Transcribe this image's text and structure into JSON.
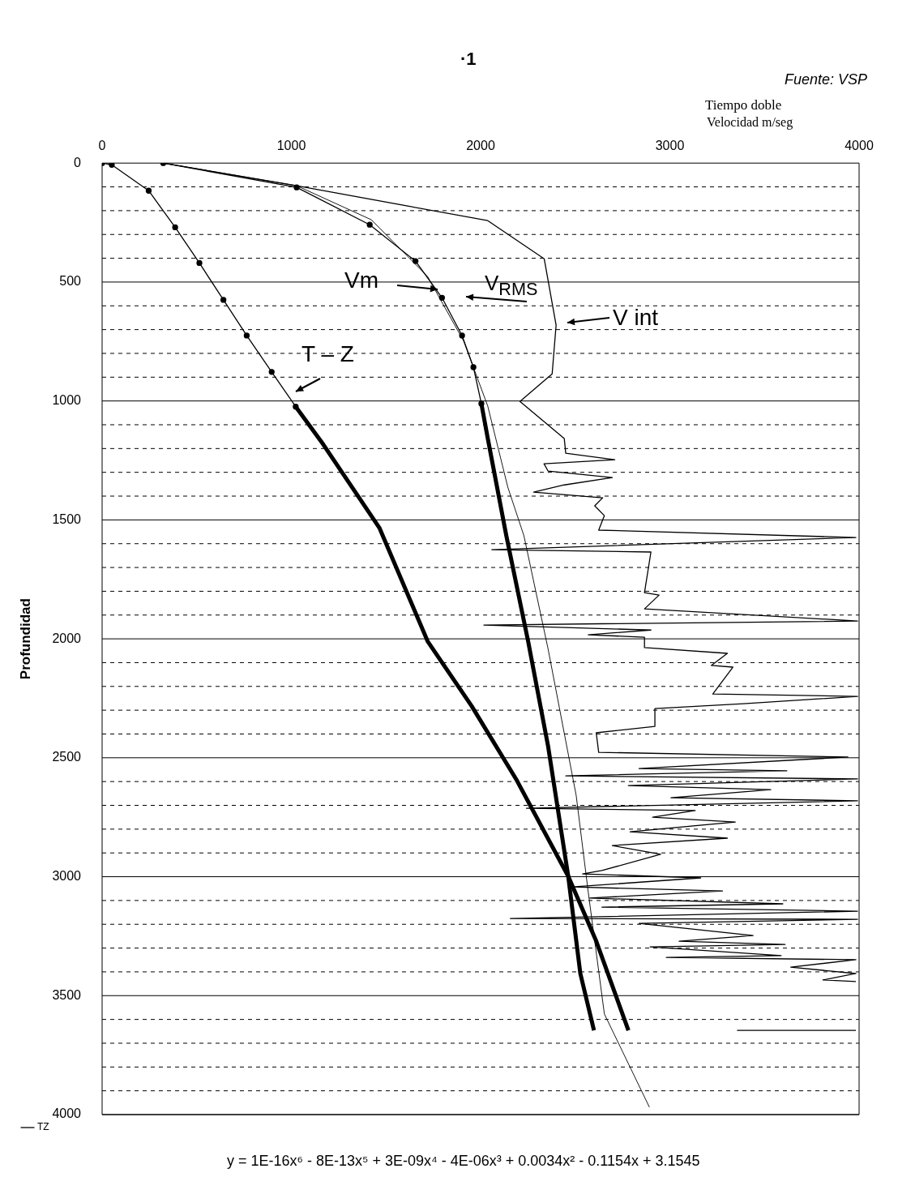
{
  "chart_data": {
    "type": "line",
    "title": "·1",
    "ylabel": "Profundidad",
    "xlabel": "Velocidad m/seg",
    "annotations": [
      "Fuente: VSP",
      "Tiempo doble",
      "y = 1E-16x⁶ - 8E-13x⁵ + 3E-09x⁴ - 4E-06x³ + 0.0034x² - 0.1154x + 3.1545",
      "Vm",
      "V$_{RMS}$",
      "V int",
      "T – Z"
    ],
    "xlim": [
      0,
      4000
    ],
    "xticks": [
      0,
      1000,
      2000,
      3000,
      4000
    ],
    "ylim": [
      4000,
      0
    ],
    "yticks": [
      0,
      {
        "value": 100,
        "label": null
      },
      {
        "value": 200,
        "label": null
      },
      {
        "value": 300,
        "label": null
      },
      {
        "value": 400,
        "label": null
      },
      500,
      {
        "value": 600,
        "label": null
      },
      {
        "value": 700,
        "label": null
      },
      {
        "value": 800,
        "label": null
      },
      {
        "value": 900,
        "label": null
      },
      1000,
      {
        "value": 1100,
        "label": null
      },
      {
        "value": 1200,
        "label": null
      },
      {
        "value": 1300,
        "label": null
      },
      {
        "value": 1400,
        "label": null
      },
      1500,
      {
        "value": 1600,
        "label": null
      },
      {
        "value": 1700,
        "label": null
      },
      {
        "value": 1800,
        "label": null
      },
      {
        "value": 1900,
        "label": null
      },
      2000,
      {
        "value": 2100,
        "label": null
      },
      {
        "value": 2200,
        "label": null
      },
      {
        "value": 2300,
        "label": null
      },
      {
        "value": 2400,
        "label": null
      },
      2500,
      {
        "value": 2600,
        "label": null
      },
      {
        "value": 2700,
        "label": null
      },
      {
        "value": 2800,
        "label": null
      },
      {
        "value": 2900,
        "label": null
      },
      3000,
      {
        "value": 3100,
        "label": null
      },
      {
        "value": 3200,
        "label": null
      },
      {
        "value": 3300,
        "label": null
      },
      {
        "value": 3400,
        "label": null
      },
      3500,
      {
        "value": 3600,
        "label": null
      },
      {
        "value": 3700,
        "label": null
      },
      {
        "value": 3800,
        "label": null
      },
      {
        "value": 3900,
        "label": null
      },
      4000
    ],
    "grid": "y",
    "legend": "bottom left",
    "series": [
      {
        "name": "TZ",
        "color": "#000000",
        "marker": "circle",
        "x": [
          0,
          51,
          246,
          386,
          514,
          641,
          764,
          896,
          1023
        ],
        "values": [
          0,
          7,
          116,
          270,
          420,
          575,
          725,
          878,
          1024
        ]
      },
      {
        "color": "#000000",
        "marker": "none",
        "x": [
          1023,
          1168,
          1465,
          1720,
          1953,
          2187,
          2463,
          2611,
          2781
        ],
        "values": [
          1024,
          1182,
          1533,
          2010,
          2283,
          2589,
          2998,
          3271,
          3646
        ]
      },
      {
        "color": "#000000",
        "marker": "circle",
        "x": [
          323,
          1028,
          1414,
          1656,
          1796,
          1902,
          1962,
          2004
        ],
        "values": [
          0,
          102,
          259,
          412,
          566,
          725,
          858,
          1011
        ]
      },
      {
        "color": "#000000",
        "marker": "none",
        "x": [
          2004,
          2038,
          2136,
          2251,
          2357,
          2463,
          2527,
          2599
        ],
        "values": [
          1011,
          1158,
          1567,
          2010,
          2453,
          2998,
          3407,
          3646
        ]
      },
      {
        "color": "#000000",
        "marker": "none",
        "x": [
          323,
          1028,
          1422,
          1720,
          1911,
          2038,
          2144,
          2229,
          2357,
          2505,
          2569,
          2654,
          2892
        ],
        "values": [
          0,
          95,
          238,
          477,
          749,
          1022,
          1363,
          1567,
          2044,
          2658,
          3066,
          3577,
          3969
        ]
      },
      {
        "color": "#000000",
        "marker": "none",
        "x": [
          323,
          1028,
          2038,
          2336,
          2399,
          2378,
          2208,
          2442,
          2450,
          2709,
          2335,
          2357,
          2696,
          2442,
          2280,
          2645,
          2603,
          2654,
          2624,
          3983,
          2059,
          2900,
          2866,
          2943,
          2866,
          3992,
          2017,
          2900,
          2569,
          2866,
          2866,
          3304,
          3219,
          3333,
          3227,
          3992,
          3389,
          2921,
          2921,
          2611,
          2624,
          3941,
          2837,
          3618,
          2450,
          3992,
          2781,
          3533,
          3006,
          3992,
          2242,
          3134,
          2909,
          3346,
          2790,
          3304,
          2696,
          2951,
          2641,
          2539,
          3163,
          2484,
          3278,
          2577,
          3597,
          2641,
          3992,
          2157,
          3992,
          2837,
          3440,
          3049,
          3609,
          2896,
          3588,
          2981,
          3983,
          3639,
          3983,
          3809,
          3983,
          3700,
          3355,
          3983
        ],
        "values": [
          0,
          95,
          242,
          402,
          681,
          886,
          1002,
          1158,
          1220,
          1247,
          1264,
          1295,
          1322,
          1353,
          1383,
          1407,
          1441,
          1482,
          1543,
          1574,
          1625,
          1635,
          1806,
          1816,
          1874,
          1925,
          1942,
          1963,
          1983,
          1993,
          2037,
          2061,
          2112,
          2119,
          2232,
          2242,
          2273,
          2293,
          2368,
          2395,
          2477,
          2497,
          2545,
          2555,
          2576,
          2589,
          2617,
          2634,
          2668,
          2681,
          2712,
          2722,
          2750,
          2770,
          2811,
          2838,
          2869,
          2906,
          2974,
          2988,
          3005,
          3043,
          3060,
          3090,
          3114,
          3128,
          3145,
          3176,
          3179,
          3196,
          3247,
          3271,
          3285,
          3295,
          3332,
          3339,
          3349,
          3380,
          3407,
          3434,
          3441,
          null,
          3646,
          3646
        ]
      }
    ]
  }
}
